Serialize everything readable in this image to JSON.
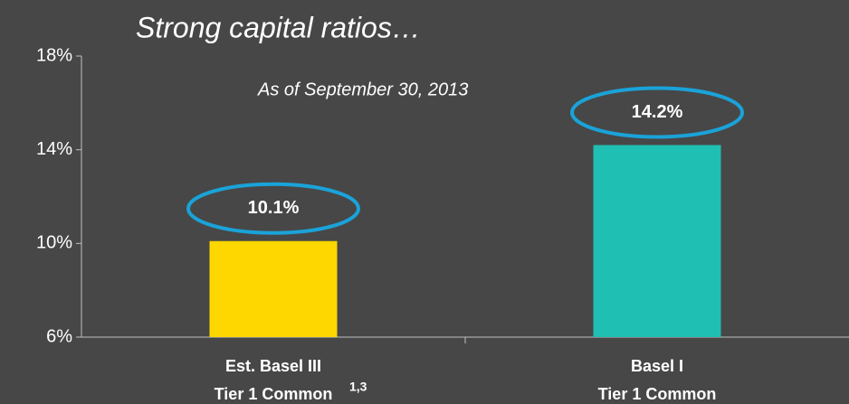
{
  "chart_data": {
    "type": "bar",
    "title": "Strong capital ratios…",
    "subtitle": "As of September 30, 2013",
    "categories": [
      [
        "Est. Basel III",
        "Tier 1 Common"
      ],
      [
        "Basel I",
        "Tier 1 Common"
      ]
    ],
    "category_notes": [
      "1,3",
      null
    ],
    "values": [
      10.1,
      14.2
    ],
    "value_labels": [
      "10.1%",
      "14.2%"
    ],
    "colors": [
      "#ffd700",
      "#1fbfb3"
    ],
    "highlight_color": "#1aa3d9",
    "ylim": [
      6,
      18
    ],
    "yticks": [
      {
        "value": 6,
        "label": "6%"
      },
      {
        "value": 10,
        "label": "10%"
      },
      {
        "value": 14,
        "label": "14%"
      },
      {
        "value": 18,
        "label": "18%"
      }
    ]
  }
}
